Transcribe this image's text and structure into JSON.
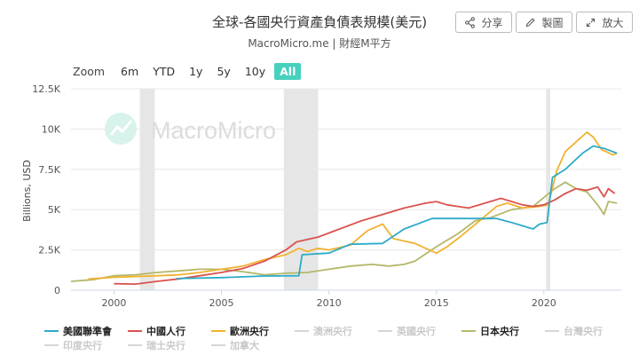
{
  "header": {
    "title": "全球-各國央行資產負債表規模(美元)",
    "subtitle": "MacroMicro.me | 財經M平方"
  },
  "toolbar": {
    "share_label": "分享",
    "chart_label": "製圖",
    "expand_label": "放大"
  },
  "zoom": {
    "label": "Zoom",
    "options": [
      "6m",
      "YTD",
      "1y",
      "5y",
      "10y",
      "All"
    ],
    "active": "All"
  },
  "watermark": "MacroMicro",
  "chart_data": {
    "type": "line",
    "ylabel": "Billions, USD",
    "xlim": [
      1998.0,
      2023.6
    ],
    "ylim": [
      0,
      12500
    ],
    "xticks": [
      2000,
      2005,
      2010,
      2015,
      2020
    ],
    "xtick_labels": [
      "2000",
      "2005",
      "2010",
      "2015",
      "2020"
    ],
    "yticks": [
      0,
      2500,
      5000,
      7500,
      10000,
      12500
    ],
    "ytick_labels": [
      "0",
      "2.5K",
      "5K",
      "7.5K",
      "10K",
      "12.5K"
    ],
    "recession_bands": [
      [
        2001.2,
        2001.9
      ],
      [
        2007.9,
        2009.5
      ],
      [
        2020.1,
        2020.3
      ]
    ],
    "series": [
      {
        "name": "美國聯準會",
        "color": "#2eabc9",
        "visible": true,
        "x": [
          2002.9,
          2005.0,
          2007.0,
          2008.6,
          2008.75,
          2010.0,
          2011.0,
          2012.5,
          2013.5,
          2014.8,
          2016.0,
          2017.8,
          2018.5,
          2019.0,
          2019.5,
          2019.8,
          2020.15,
          2020.4,
          2021.0,
          2021.8,
          2022.3,
          2022.8,
          2023.2,
          2023.4
        ],
        "y": [
          720,
          780,
          880,
          900,
          2200,
          2300,
          2850,
          2900,
          3800,
          4450,
          4450,
          4450,
          4200,
          4000,
          3800,
          4100,
          4200,
          7000,
          7500,
          8500,
          8950,
          8800,
          8600,
          8500
        ]
      },
      {
        "name": "中國人行",
        "color": "#d9534f",
        "visible": true,
        "x": [
          2000.0,
          2001.0,
          2002.0,
          2003.0,
          2004.0,
          2005.0,
          2006.0,
          2007.0,
          2008.0,
          2008.5,
          2009.5,
          2010.5,
          2011.5,
          2012.5,
          2013.5,
          2014.5,
          2015.0,
          2015.5,
          2016.0,
          2016.5,
          2017.0,
          2017.5,
          2018.0,
          2018.5,
          2019.0,
          2019.5,
          2020.0,
          2020.5,
          2021.0,
          2021.5,
          2022.0,
          2022.5,
          2022.8,
          2023.0,
          2023.3
        ],
        "y": [
          400,
          380,
          550,
          700,
          900,
          1100,
          1350,
          1800,
          2500,
          3000,
          3300,
          3800,
          4300,
          4700,
          5100,
          5400,
          5500,
          5300,
          5200,
          5100,
          5300,
          5500,
          5700,
          5500,
          5300,
          5200,
          5300,
          5600,
          6000,
          6300,
          6200,
          6400,
          5800,
          6300,
          6000
        ]
      },
      {
        "name": "歐洲央行",
        "color": "#f2b230",
        "visible": true,
        "x": [
          1998.8,
          2000.0,
          2001.0,
          2002.0,
          2003.0,
          2004.0,
          2005.0,
          2006.0,
          2007.0,
          2008.0,
          2008.6,
          2009.0,
          2009.5,
          2010.0,
          2011.0,
          2011.8,
          2012.5,
          2013.0,
          2014.0,
          2014.5,
          2015.0,
          2015.5,
          2016.0,
          2017.0,
          2017.8,
          2018.3,
          2019.0,
          2019.8,
          2020.2,
          2020.6,
          2021.0,
          2021.5,
          2022.0,
          2022.3,
          2022.7,
          2022.9,
          2023.2,
          2023.4
        ],
        "y": [
          700,
          800,
          850,
          900,
          950,
          1100,
          1300,
          1500,
          1900,
          2200,
          2600,
          2400,
          2600,
          2500,
          2800,
          3700,
          4100,
          3200,
          2900,
          2600,
          2300,
          2700,
          3200,
          4300,
          5200,
          5400,
          5100,
          5200,
          5300,
          7400,
          8600,
          9200,
          9800,
          9500,
          8700,
          8600,
          8400,
          8500
        ]
      },
      {
        "name": "澳洲央行",
        "color": "#cfcfcf",
        "visible": false,
        "x": [],
        "y": []
      },
      {
        "name": "英國央行",
        "color": "#cfcfcf",
        "visible": false,
        "x": [],
        "y": []
      },
      {
        "name": "日本央行",
        "color": "#b5b76a",
        "visible": true,
        "x": [
          1998.0,
          1999.0,
          2000.0,
          2001.0,
          2002.0,
          2003.0,
          2004.0,
          2005.0,
          2006.0,
          2007.0,
          2008.0,
          2009.0,
          2010.0,
          2011.0,
          2012.0,
          2012.8,
          2013.5,
          2014.0,
          2015.0,
          2016.0,
          2016.8,
          2017.5,
          2018.5,
          2019.5,
          2020.5,
          2021.0,
          2021.5,
          2022.0,
          2022.5,
          2022.8,
          2023.0,
          2023.4
        ],
        "y": [
          550,
          650,
          900,
          950,
          1100,
          1200,
          1300,
          1300,
          1150,
          950,
          1050,
          1100,
          1300,
          1500,
          1600,
          1500,
          1600,
          1800,
          2700,
          3500,
          4300,
          4500,
          5000,
          5200,
          6300,
          6700,
          6300,
          6100,
          5300,
          4700,
          5500,
          5400
        ]
      },
      {
        "name": "台灣央行",
        "color": "#cfcfcf",
        "visible": false,
        "x": [],
        "y": []
      },
      {
        "name": "印度央行",
        "color": "#cfcfcf",
        "visible": false,
        "x": [],
        "y": []
      },
      {
        "name": "瑞士央行",
        "color": "#cfcfcf",
        "visible": false,
        "x": [],
        "y": []
      },
      {
        "name": "加拿大",
        "color": "#cfcfcf",
        "visible": false,
        "x": [],
        "y": []
      }
    ]
  }
}
